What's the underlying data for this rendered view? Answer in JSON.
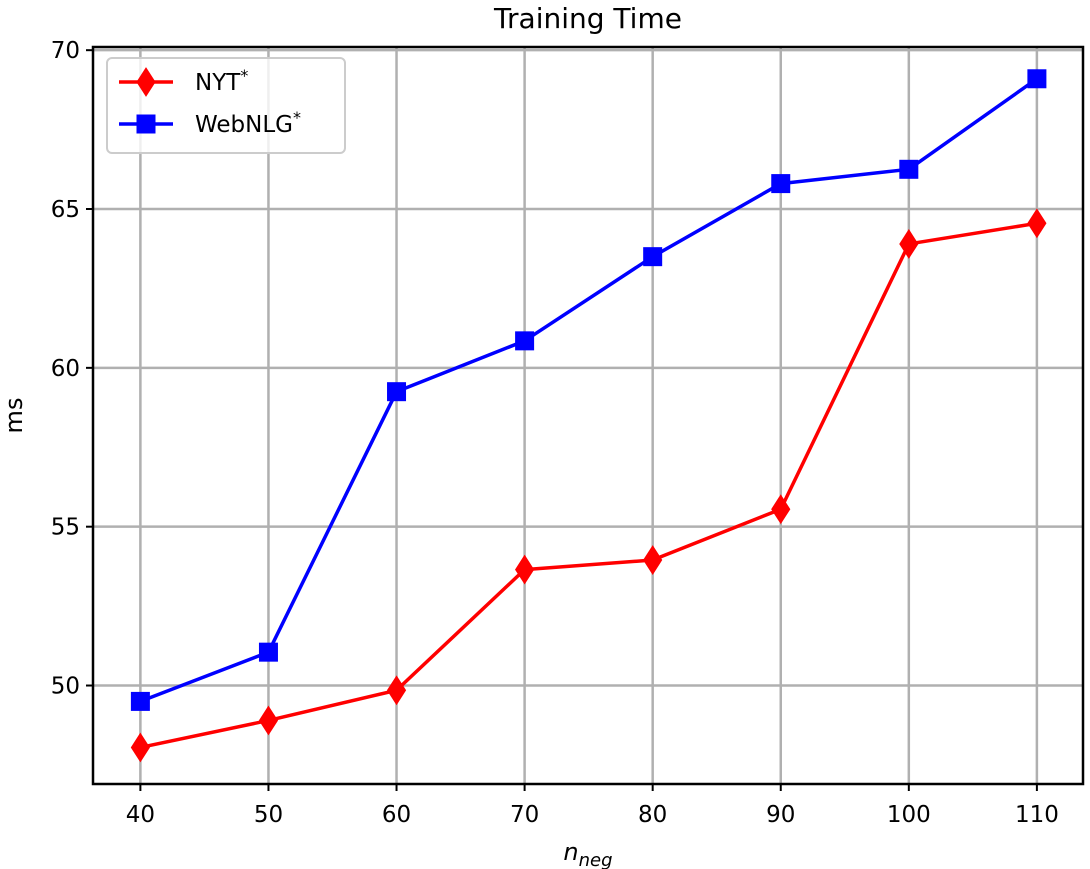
{
  "chart_data": {
    "type": "line",
    "title": "Training Time",
    "xlabel": {
      "base": "n",
      "sub": "neg"
    },
    "ylabel": "ms",
    "x": [
      40,
      50,
      60,
      70,
      80,
      90,
      100,
      110
    ],
    "x_tick_labels": [
      "40",
      "50",
      "60",
      "70",
      "80",
      "90",
      "100",
      "110"
    ],
    "xlim": [
      36.3,
      113.6
    ],
    "ylim": [
      46.9,
      70.1
    ],
    "y_ticks": [
      50,
      55,
      60,
      65,
      70
    ],
    "y_tick_labels": [
      "50",
      "55",
      "60",
      "65",
      "70"
    ],
    "grid": true,
    "legend_position": "top-left",
    "series": [
      {
        "name": "NYT",
        "name_sup": "*",
        "color": "#ff0000",
        "marker": "diamond",
        "values": [
          48.05,
          48.9,
          49.85,
          53.65,
          53.95,
          55.55,
          63.9,
          64.55
        ]
      },
      {
        "name": "WebNLG",
        "name_sup": "*",
        "color": "#0000ff",
        "marker": "square",
        "values": [
          49.5,
          51.05,
          59.25,
          60.85,
          63.5,
          65.8,
          66.25,
          69.1
        ]
      }
    ]
  }
}
